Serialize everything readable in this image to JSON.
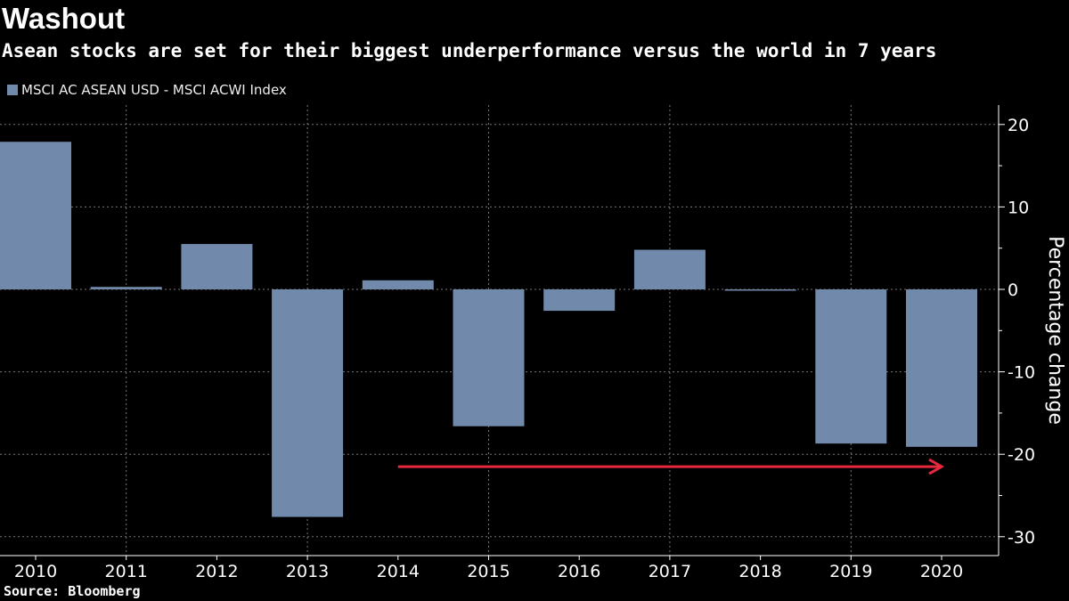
{
  "title": "Washout",
  "subtitle": "Asean stocks are set for their biggest underperformance versus the world in 7 years",
  "source": "Source: Bloomberg",
  "chart_data": {
    "type": "bar",
    "categories": [
      "2010",
      "2011",
      "2012",
      "2013",
      "2014",
      "2015",
      "2016",
      "2017",
      "2018",
      "2019",
      "2020"
    ],
    "series": [
      {
        "name": "MSCI AC ASEAN USD - MSCI ACWI Index",
        "values": [
          17.9,
          0.3,
          5.5,
          -27.6,
          1.1,
          -16.6,
          -2.6,
          4.8,
          -0.1,
          -18.7,
          -19.1
        ]
      }
    ],
    "ylabel": "Percentage change",
    "ylim": [
      -32,
      22
    ],
    "yticks": [
      20,
      10,
      0,
      -10,
      -20,
      -30
    ],
    "grid": true,
    "legend": "top-left",
    "bar_color": "#7189aa",
    "annotation": {
      "type": "arrow",
      "from": "2014",
      "to": "2020",
      "y": -21.5,
      "color": "#e8283c"
    }
  }
}
